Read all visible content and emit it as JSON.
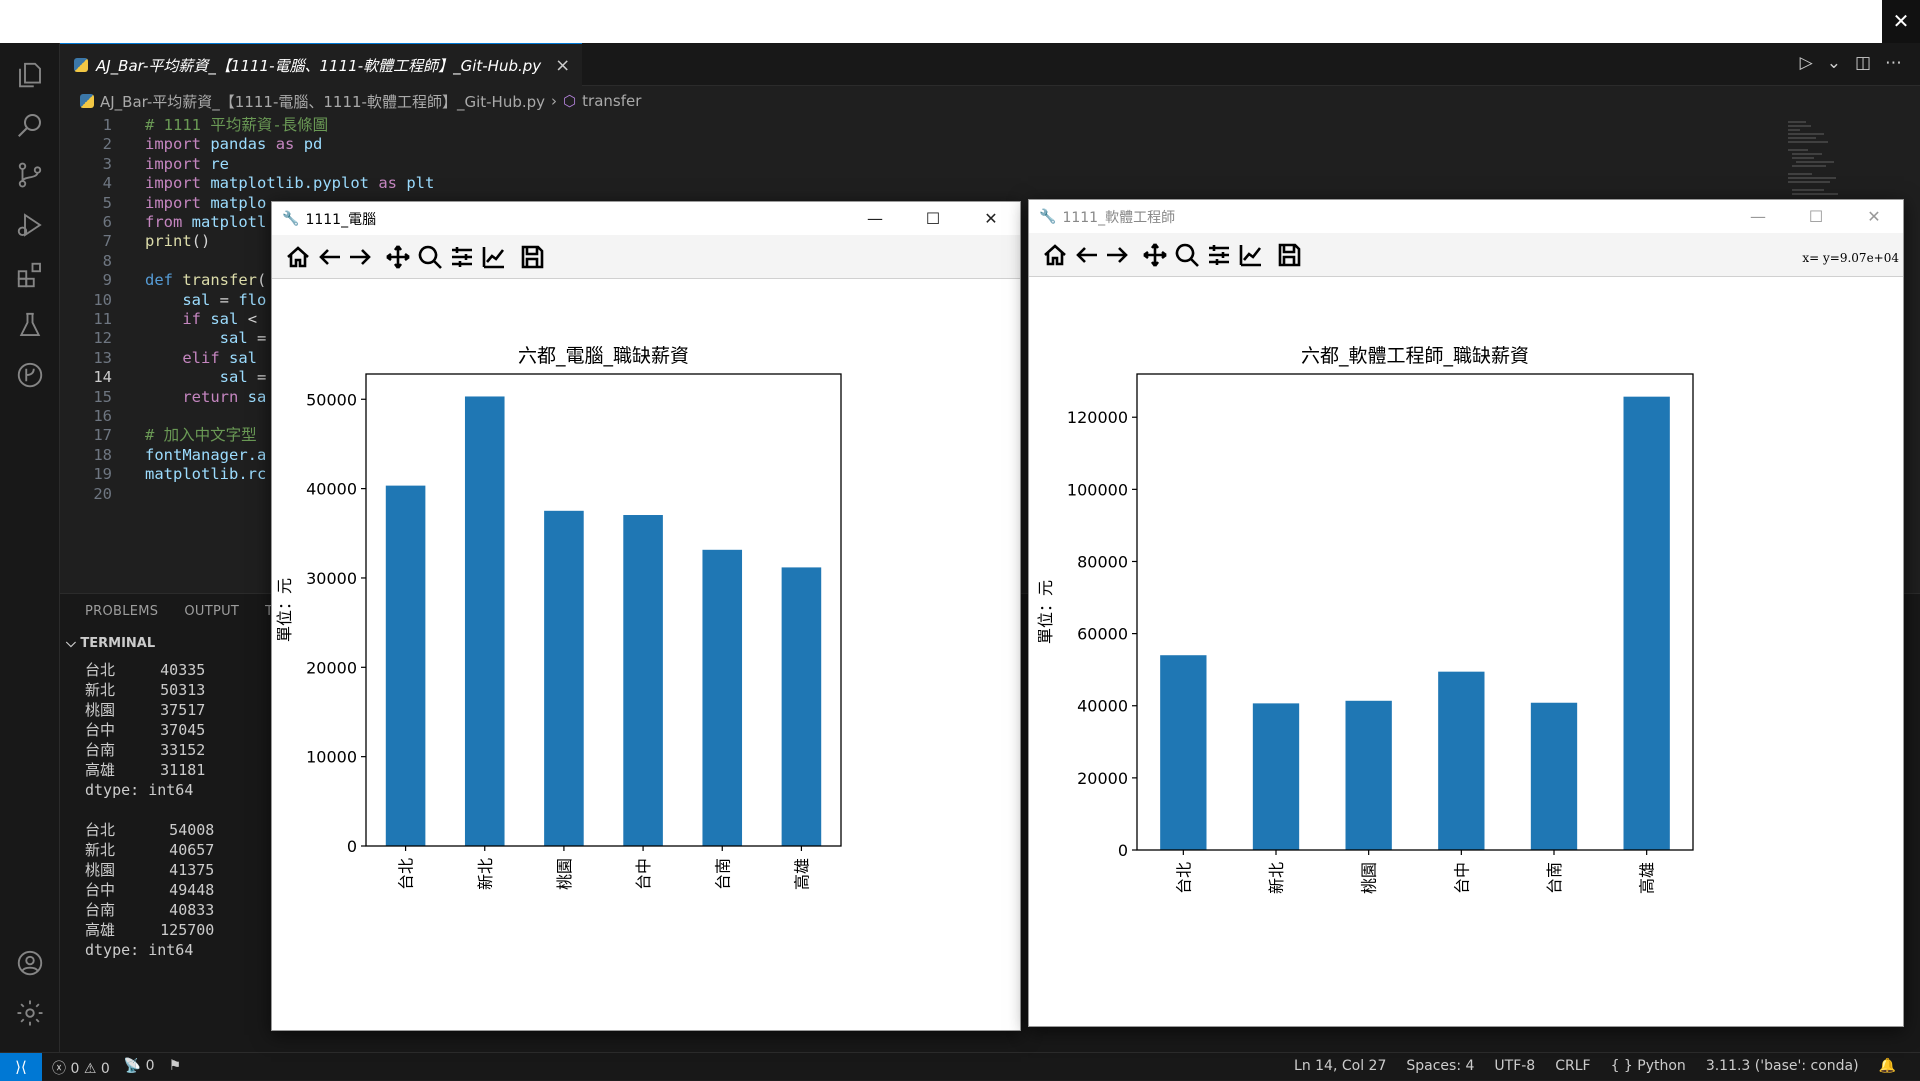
{
  "editor": {
    "tab_label": "AJ_Bar-平均薪資_【1111-電腦、1111-軟體工程師】_Git-Hub.py",
    "breadcrumb_file": "AJ_Bar-平均薪資_【1111-電腦、1111-軟體工程師】_Git-Hub.py",
    "breadcrumb_symbol": "transfer",
    "close_glyph": "×",
    "lines": [
      {
        "n": "1",
        "t": "# 1111 平均薪資-長條圖"
      },
      {
        "n": "2",
        "t": "import pandas as pd"
      },
      {
        "n": "3",
        "t": "import re"
      },
      {
        "n": "4",
        "t": "import matplotlib.pyplot as plt"
      },
      {
        "n": "5",
        "t": "import matplo"
      },
      {
        "n": "6",
        "t": "from matplotl"
      },
      {
        "n": "7",
        "t": "print()"
      },
      {
        "n": "8",
        "t": ""
      },
      {
        "n": "9",
        "t": "def transfer("
      },
      {
        "n": "10",
        "t": "    sal = flo"
      },
      {
        "n": "11",
        "t": "    if sal <"
      },
      {
        "n": "12",
        "t": "        sal ="
      },
      {
        "n": "13",
        "t": "    elif sal"
      },
      {
        "n": "14",
        "t": "        sal ="
      },
      {
        "n": "15",
        "t": "    return sa"
      },
      {
        "n": "16",
        "t": ""
      },
      {
        "n": "17",
        "t": "# 加入中文字型"
      },
      {
        "n": "18",
        "t": "fontManager.a"
      },
      {
        "n": "19",
        "t": "matplotlib.rc"
      },
      {
        "n": "20",
        "t": ""
      }
    ]
  },
  "panel": {
    "tabs": [
      "PROBLEMS",
      "OUTPUT",
      "T"
    ],
    "terminal_header": "TERMINAL",
    "terminal_lines": [
      "台北     40335",
      "新北     50313",
      "桃園     37517",
      "台中     37045",
      "台南     33152",
      "高雄     31181",
      "dtype: int64",
      "",
      "台北      54008",
      "新北      40657",
      "桃園      41375",
      "台中      49448",
      "台南      40833",
      "高雄     125700",
      "dtype: int64"
    ]
  },
  "statusbar": {
    "errors": "0",
    "warnings": "0",
    "ports": "0",
    "position": "Ln 14, Col 27",
    "spaces": "Spaces: 4",
    "encoding": "UTF-8",
    "eol": "CRLF",
    "language": "Python",
    "interpreter": "3.11.3 ('base': conda)"
  },
  "figures": [
    {
      "window_title": "1111_電腦",
      "readout": ""
    },
    {
      "window_title": "1111_軟體工程師",
      "readout": "x= y=9.07e+04"
    }
  ],
  "colors": {
    "bar": "#1f77b4",
    "accent": "#0078d4"
  },
  "chart_data": [
    {
      "type": "bar",
      "title": "六都_電腦_職缺薪資",
      "ylabel": "單位：元",
      "xlabel": "",
      "categories": [
        "台北",
        "新北",
        "桃園",
        "台中",
        "台南",
        "高雄"
      ],
      "values": [
        40335,
        50313,
        37517,
        37045,
        33152,
        31181
      ],
      "ylim": [
        0,
        52828
      ],
      "yticks": [
        0,
        10000,
        20000,
        30000,
        40000,
        50000
      ],
      "grid": false,
      "legend": "none"
    },
    {
      "type": "bar",
      "title": "六都_軟體工程師_職缺薪資",
      "ylabel": "單位：元",
      "xlabel": "",
      "categories": [
        "台北",
        "新北",
        "桃園",
        "台中",
        "台南",
        "高雄"
      ],
      "values": [
        54008,
        40657,
        41375,
        49448,
        40833,
        125700
      ],
      "ylim": [
        0,
        131985
      ],
      "yticks": [
        0,
        20000,
        40000,
        60000,
        80000,
        100000,
        120000
      ],
      "grid": false,
      "legend": "none"
    }
  ]
}
